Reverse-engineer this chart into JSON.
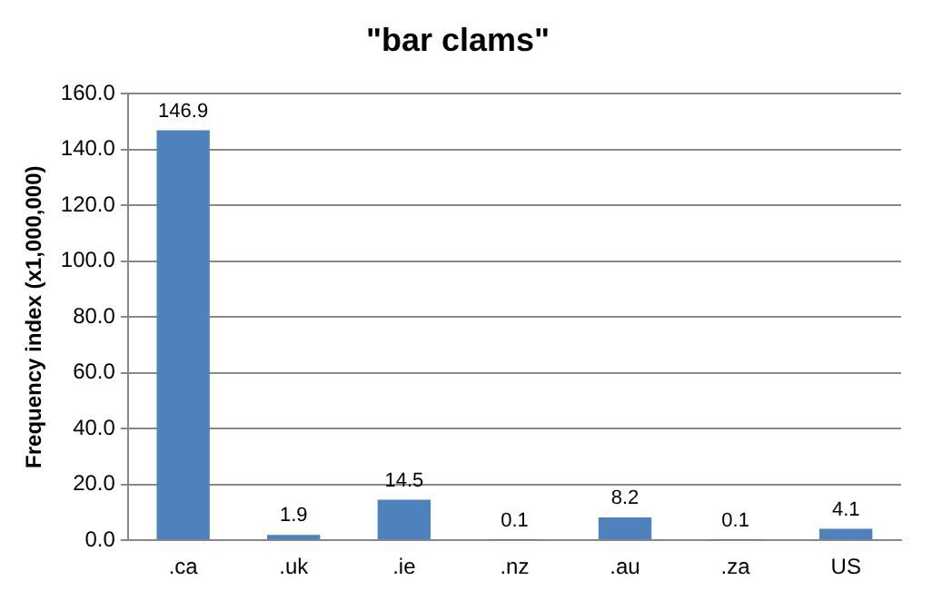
{
  "chart_data": {
    "type": "bar",
    "title": "\"bar clams\"",
    "ylabel": "Frequency index (x1,000,000)",
    "categories": [
      ".ca",
      ".uk",
      ".ie",
      ".nz",
      ".au",
      ".za",
      "US"
    ],
    "values": [
      146.9,
      1.9,
      14.5,
      0.1,
      8.2,
      0.1,
      4.1
    ],
    "color": "#4f81bd",
    "ylim": [
      0,
      160
    ],
    "yticks": [
      {
        "value": 0,
        "label": "0.0"
      },
      {
        "value": 20,
        "label": "20.0"
      },
      {
        "value": 40,
        "label": "40.0"
      },
      {
        "value": 60,
        "label": "60.0"
      },
      {
        "value": 80,
        "label": "80.0"
      },
      {
        "value": 100,
        "label": "100.0"
      },
      {
        "value": 120,
        "label": "120.0"
      },
      {
        "value": 140,
        "label": "140.0"
      },
      {
        "value": 160,
        "label": "160.0"
      }
    ],
    "grid": "y",
    "data_labels": true,
    "legend": false
  }
}
